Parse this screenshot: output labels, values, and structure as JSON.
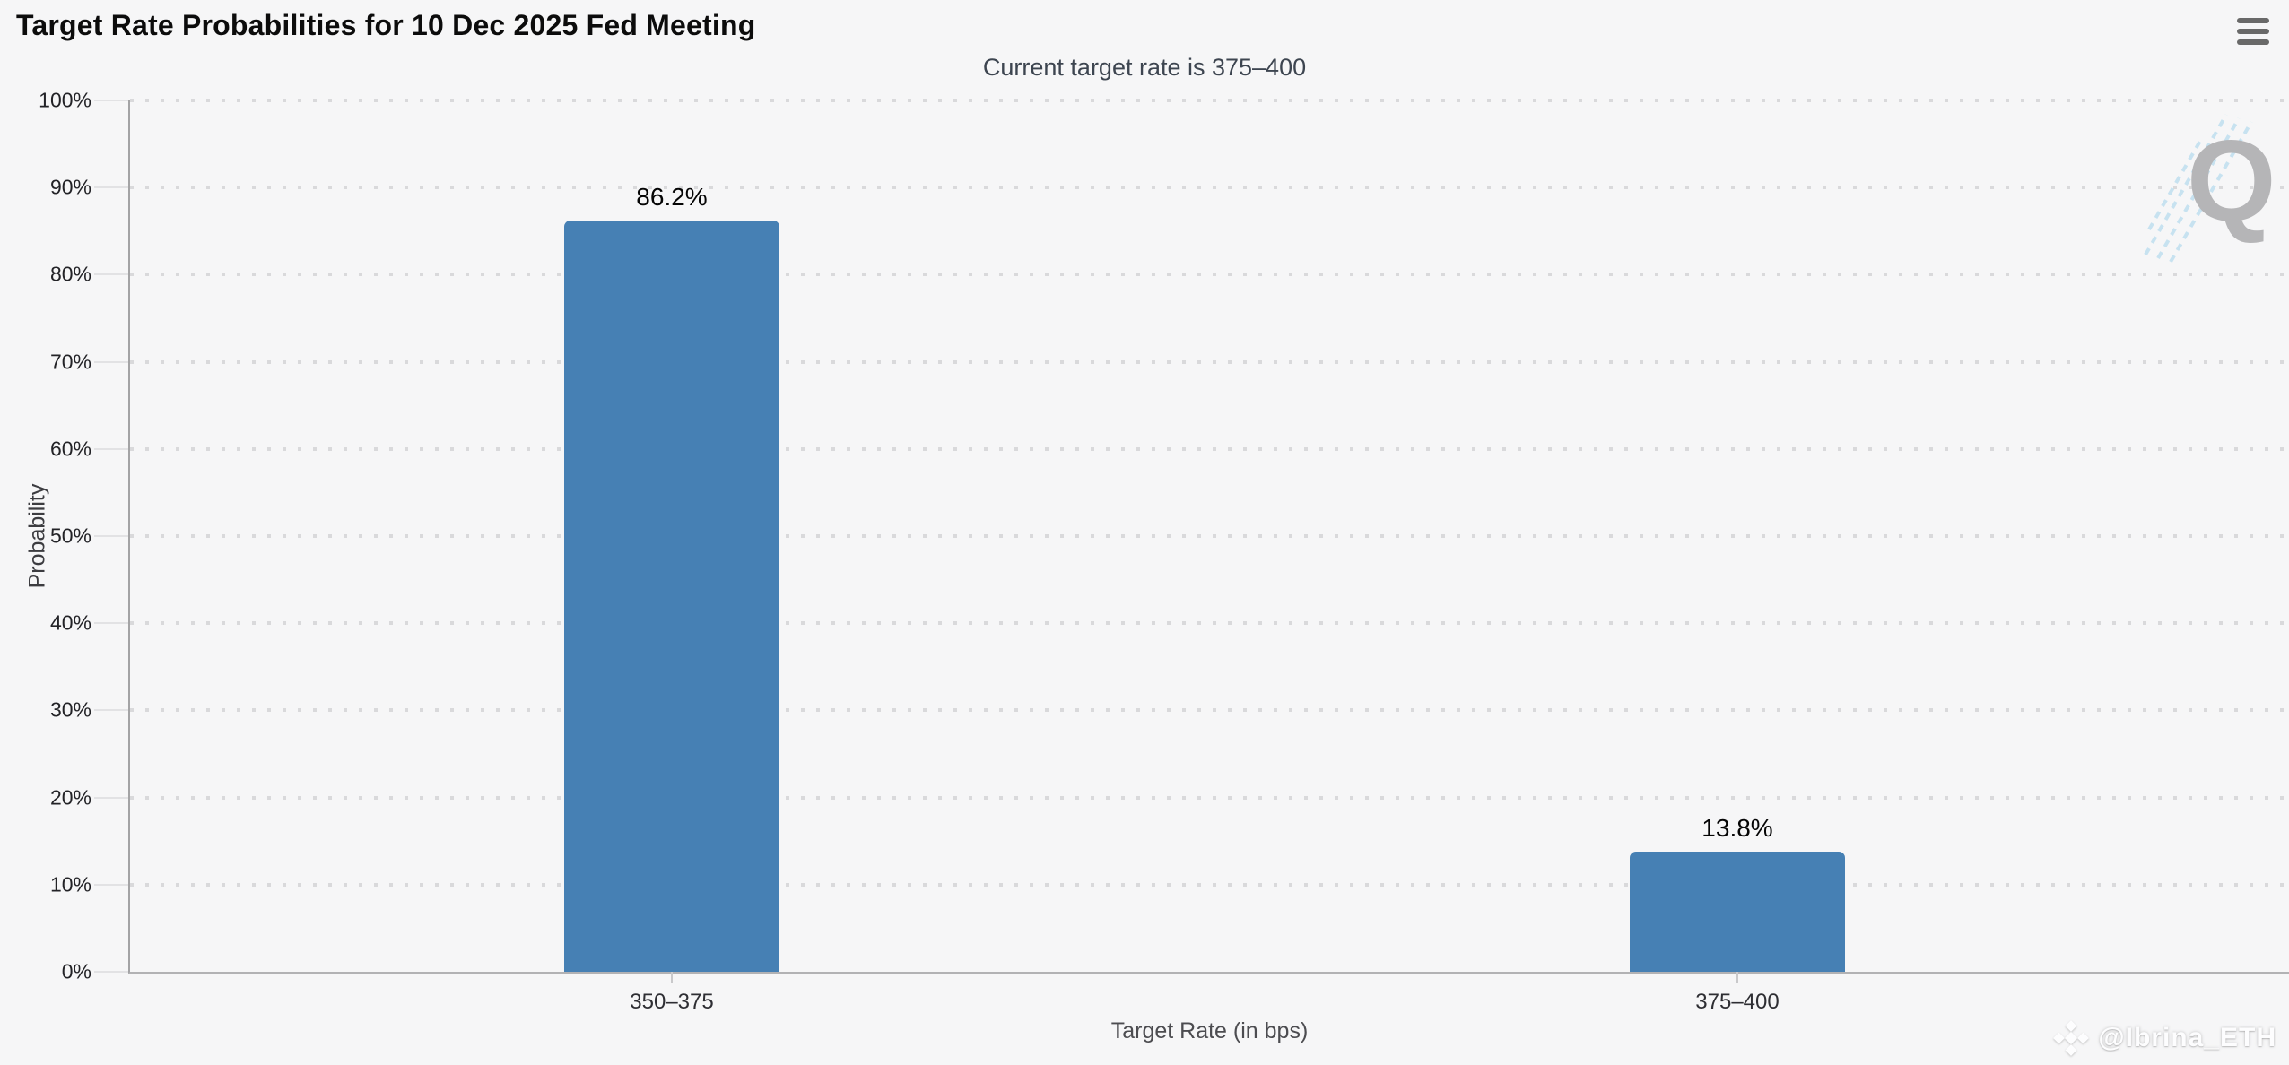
{
  "header": {
    "title": "Target Rate Probabilities for 10 Dec 2025 Fed Meeting",
    "subtitle": "Current target rate is 375–400"
  },
  "watermark": {
    "letter": "Q",
    "credit": "@Ibrina_ETH"
  },
  "chart_data": {
    "type": "bar",
    "title": "Target Rate Probabilities for 10 Dec 2025 Fed Meeting",
    "subtitle": "Current target rate is 375–400",
    "categories": [
      "350–375",
      "375–400"
    ],
    "values": [
      86.2,
      13.8
    ],
    "bar_labels": [
      "86.2%",
      "13.8%"
    ],
    "xlabel": "Target Rate (in bps)",
    "ylabel": "Probability",
    "ylim": [
      0,
      100
    ],
    "ytick_labels": [
      "100%",
      "90%",
      "80%",
      "70%",
      "60%",
      "50%",
      "40%",
      "30%",
      "20%",
      "10%",
      "0%"
    ],
    "bar_color": "#4680B4",
    "grid": "horizontal-dotted",
    "legend_position": "none"
  }
}
